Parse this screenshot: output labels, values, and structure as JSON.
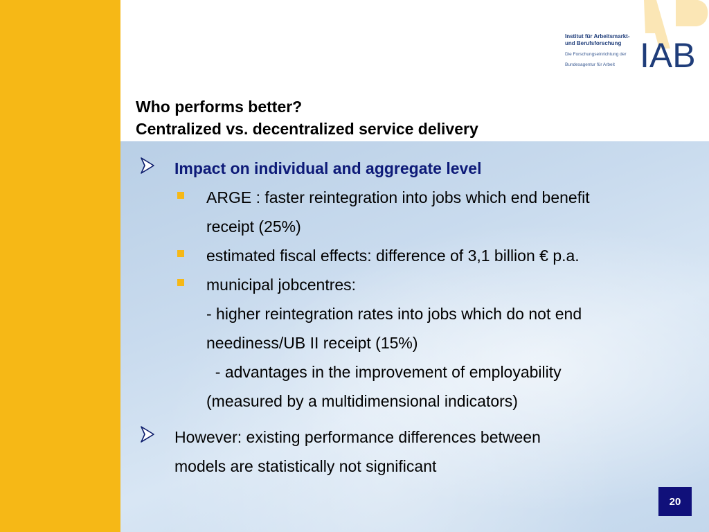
{
  "logo": {
    "institute_line1": "Institut für Arbeitsmarkt-",
    "institute_line2": "und Berufsforschung",
    "sub_line1": "Die Forschungseinrichtung der",
    "sub_line2": "Bundesagentur für Arbeit",
    "brand": "IAB"
  },
  "title": {
    "line1": "Who performs better?",
    "line2": "Centralized vs. decentralized service delivery"
  },
  "bullets": [
    {
      "text": "Impact on individual and aggregate level",
      "sub": [
        {
          "lines": [
            "ARGE :  faster reintegration into jobs which end benefit",
            "receipt (25%)"
          ]
        },
        {
          "lines": [
            "estimated fiscal effects: difference of 3,1 billion €  p.a."
          ]
        },
        {
          "lines": [
            "municipal jobcentres:",
            "- higher reintegration rates into jobs which do not end",
            "neediness/UB II receipt (15%)",
            "  - advantages in the improvement of employability",
            "(measured by a multidimensional indicators)"
          ]
        }
      ]
    },
    {
      "lines": [
        "However: existing performance differences between",
        "models are statistically not significant"
      ]
    }
  ],
  "page_number": "20",
  "colors": {
    "accent_yellow": "#f6b816",
    "heading_blue": "#0d1a78",
    "page_box": "#10107a"
  }
}
